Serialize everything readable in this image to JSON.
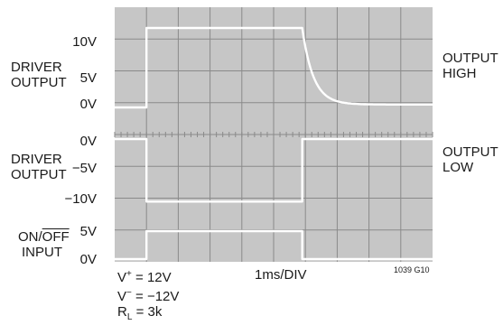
{
  "chart_data": {
    "type": "line",
    "title": "",
    "xlabel": "1ms/DIV",
    "divisions": {
      "x": 10,
      "y": 8
    },
    "left_labels": {
      "driver_output_high": {
        "line1": "DRIVER",
        "line2": "OUTPUT"
      },
      "driver_output_low": {
        "line1": "DRIVER",
        "line2": "OUTPUT"
      },
      "on_off_input": {
        "on": "ON/",
        "off": "OFF",
        "line2": "INPUT"
      }
    },
    "right_labels": {
      "output_high": {
        "line1": "OUTPUT",
        "line2": "HIGH"
      },
      "output_low": {
        "line1": "OUTPUT",
        "line2": "LOW"
      }
    },
    "ticks": {
      "top_trace": [
        "10V",
        "5V",
        "0V"
      ],
      "middle_trace": [
        "0V",
        "−5V",
        "−10V"
      ],
      "bottom_trace": [
        "5V",
        "0V"
      ]
    },
    "conditions": {
      "vplus": "V",
      "vplus_rest": " = 12V",
      "vminus": "V",
      "vminus_rest": " = −12V",
      "rl": "R",
      "rl_sub": "L",
      "rl_rest": " = 3k"
    },
    "figure_id": "1039 G10",
    "series": [
      {
        "name": "DRIVER OUTPUT (OUTPUT HIGH)",
        "x_div": [
          0,
          1,
          1,
          5.9,
          5.9,
          10
        ],
        "y_volts": [
          0,
          0,
          11,
          11,
          11,
          0.4
        ],
        "decay_after_div": 5.9
      },
      {
        "name": "DRIVER OUTPUT (OUTPUT LOW)",
        "x_div": [
          0,
          1,
          1,
          5.9,
          5.9,
          10
        ],
        "y_volts": [
          0,
          0,
          -10.5,
          -10.5,
          0,
          0
        ]
      },
      {
        "name": "ON/OFF INPUT",
        "x_div": [
          0,
          1,
          1,
          5.9,
          5.9,
          10
        ],
        "y_volts": [
          0,
          0,
          5,
          5,
          0,
          0
        ]
      }
    ]
  }
}
